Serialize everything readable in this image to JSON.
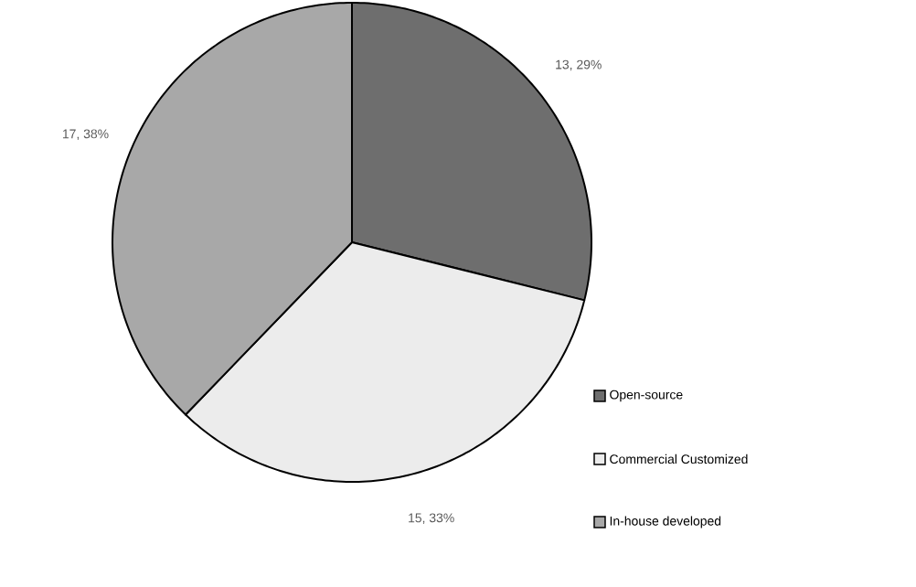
{
  "chart_data": {
    "type": "pie",
    "categories": [
      "Open-source",
      "Commercial Customized",
      "In-house developed"
    ],
    "values": [
      13,
      15,
      17
    ],
    "colors": [
      "#6e6e6e",
      "#ececec",
      "#a8a8a8"
    ],
    "value_labels": [
      "13, 29%",
      "15, 33%",
      "17, 38%"
    ],
    "legend": "bottom right"
  }
}
